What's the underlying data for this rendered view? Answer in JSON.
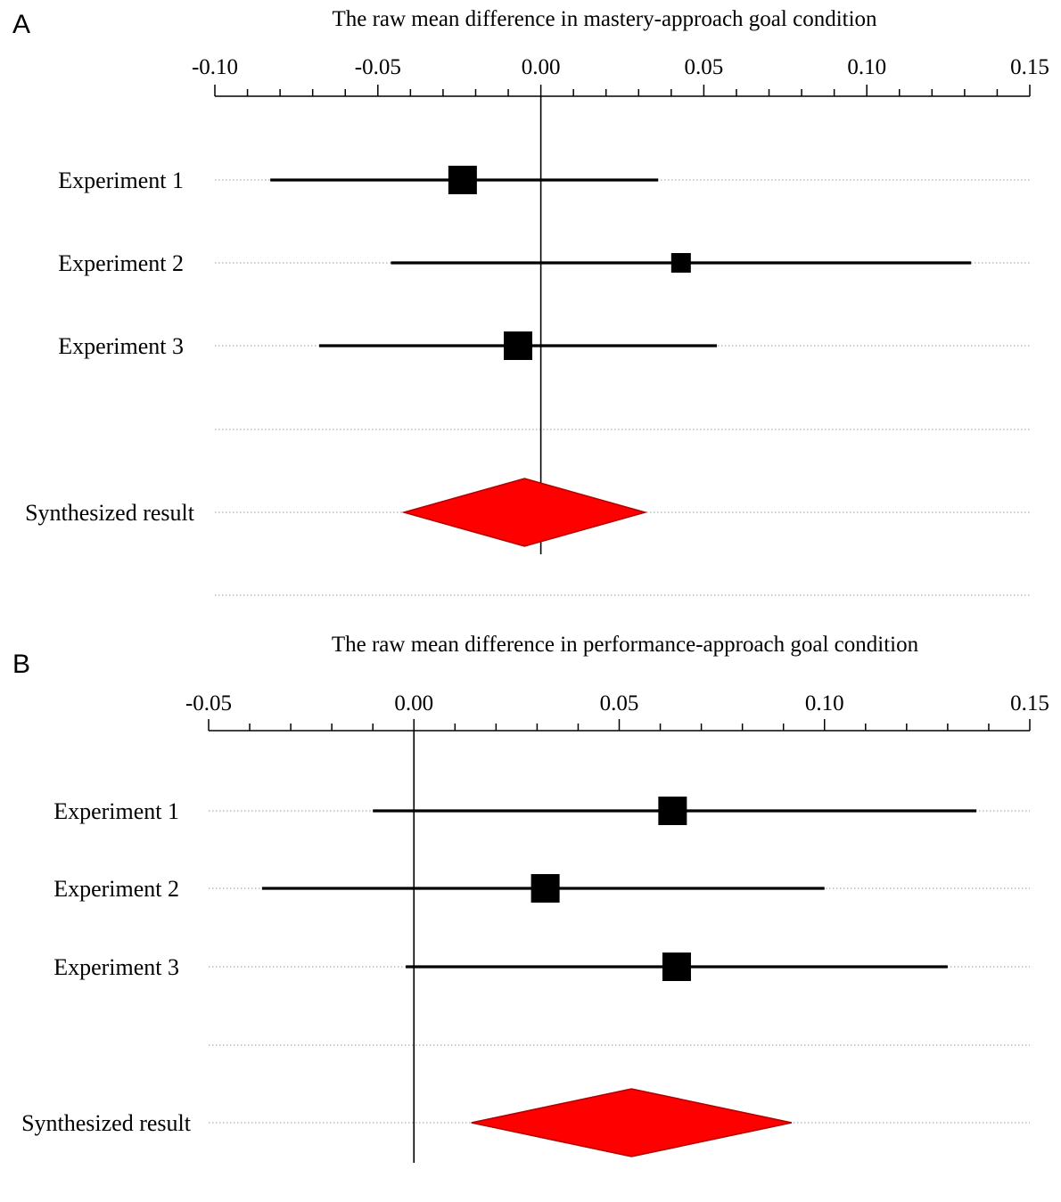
{
  "colors": {
    "marker": "#000000",
    "diamond_fill": "#ff0000",
    "diamond_stroke": "#b30000",
    "guide": "#9a9a9a"
  },
  "chart_data": [
    {
      "type": "forest",
      "panel_label": "A",
      "title": "The raw mean difference  in mastery-approach  goal  condition",
      "xlim": [
        -0.1,
        0.15
      ],
      "ticks": [
        "-0.10",
        "-0.05",
        "0.00",
        "0.05",
        "0.10",
        "0.15"
      ],
      "tick_values": [
        -0.1,
        -0.05,
        0.0,
        0.05,
        0.1,
        0.15
      ],
      "minor_tick_step": 0.01,
      "reference_line": 0.0,
      "studies": [
        {
          "label": "Experiment  1",
          "estimate": -0.024,
          "ci": [
            -0.083,
            0.036
          ],
          "weight": "large"
        },
        {
          "label": "Experiment  2",
          "estimate": 0.043,
          "ci": [
            -0.046,
            0.132
          ],
          "weight": "small"
        },
        {
          "label": "Experiment  3",
          "estimate": -0.007,
          "ci": [
            -0.068,
            0.054
          ],
          "weight": "large"
        }
      ],
      "summary": {
        "label": "Synthesized  result",
        "estimate": -0.005,
        "ci": [
          -0.042,
          0.032
        ]
      }
    },
    {
      "type": "forest",
      "panel_label": "B",
      "title": "The raw mean difference  in performance-approach  goal  condition",
      "xlim": [
        -0.05,
        0.15
      ],
      "ticks": [
        "-0.05",
        "0.00",
        "0.05",
        "0.10",
        "0.15"
      ],
      "tick_values": [
        -0.05,
        0.0,
        0.05,
        0.1,
        0.15
      ],
      "minor_tick_step": 0.01,
      "reference_line": 0.0,
      "studies": [
        {
          "label": "Experiment  1",
          "estimate": 0.063,
          "ci": [
            -0.01,
            0.137
          ],
          "weight": "large"
        },
        {
          "label": "Experiment  2",
          "estimate": 0.032,
          "ci": [
            -0.037,
            0.1
          ],
          "weight": "large"
        },
        {
          "label": "Experiment  3",
          "estimate": 0.064,
          "ci": [
            -0.002,
            0.13
          ],
          "weight": "large"
        }
      ],
      "summary": {
        "label": "Synthesized  result",
        "estimate": 0.053,
        "ci": [
          0.014,
          0.092
        ]
      }
    }
  ]
}
